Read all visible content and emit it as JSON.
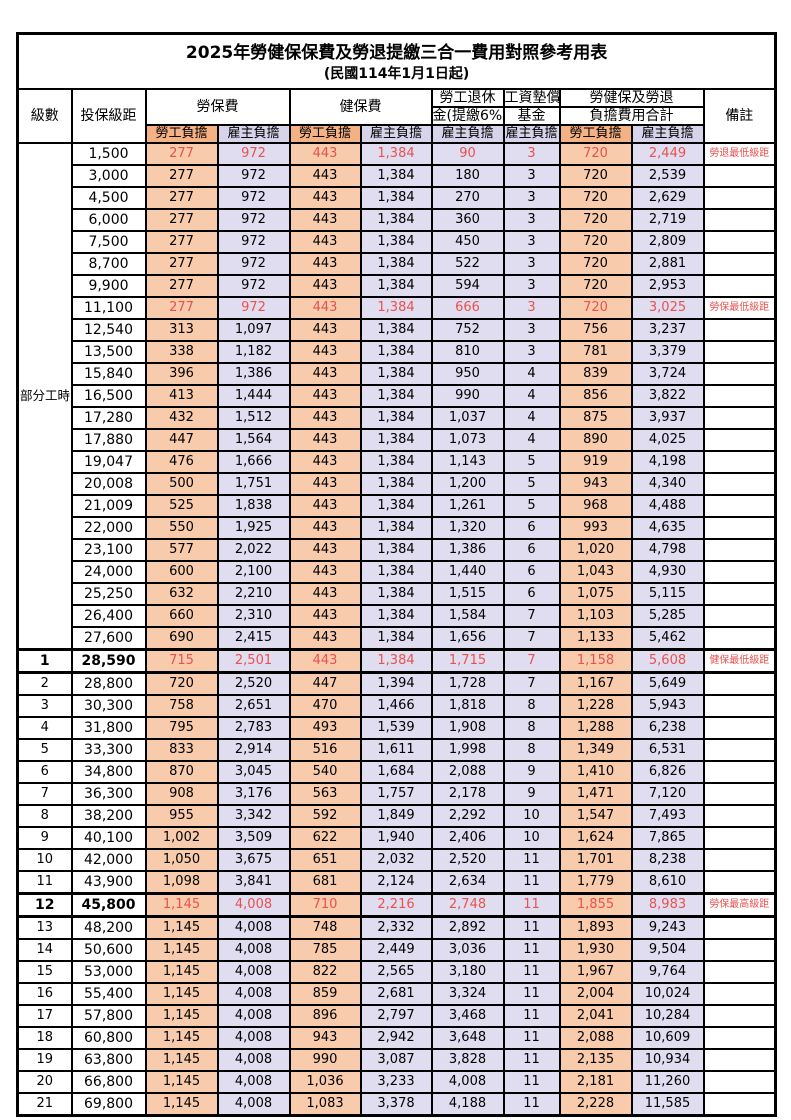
{
  "page": {
    "title": "2025年勞健保保費及勞退提繳三合一費用對照參考用表",
    "subtitle": "(民國114年1月1日起)"
  },
  "table": {
    "headers": {
      "level": "級數",
      "bracket": "投保級距",
      "labor_fee": "勞保費",
      "health_fee": "健保費",
      "pension_line1": "勞工退休",
      "pension_line2": "金(提繳6%)",
      "wage_fund_line1": "工資墊償",
      "wage_fund_line2": "基金",
      "total_line1": "勞健保及勞退",
      "total_line2": "負擔費用合計",
      "remark": "備註",
      "employee": "勞工負擔",
      "employer": "雇主負擔"
    },
    "part_time_label": "部分工時",
    "part_time_rowspan": 23,
    "column_kinds": [
      "emp",
      "er",
      "emp",
      "er",
      "er",
      "er",
      "emp",
      "er"
    ],
    "colors": {
      "employee_header": "#F4B183",
      "employer_header": "#D6D3EA",
      "employee_cell": "#F8CBAD",
      "employer_cell": "#E0DDF0",
      "highlight_text": "#E8524E",
      "border": "#000000"
    },
    "rows": [
      {
        "bracket": "1,500",
        "values": [
          "277",
          "972",
          "443",
          "1,384",
          "90",
          "3",
          "720",
          "2,449"
        ],
        "remark": "勞退最低級距",
        "special": true
      },
      {
        "bracket": "3,000",
        "values": [
          "277",
          "972",
          "443",
          "1,384",
          "180",
          "3",
          "720",
          "2,539"
        ]
      },
      {
        "bracket": "4,500",
        "values": [
          "277",
          "972",
          "443",
          "1,384",
          "270",
          "3",
          "720",
          "2,629"
        ]
      },
      {
        "bracket": "6,000",
        "values": [
          "277",
          "972",
          "443",
          "1,384",
          "360",
          "3",
          "720",
          "2,719"
        ]
      },
      {
        "bracket": "7,500",
        "values": [
          "277",
          "972",
          "443",
          "1,384",
          "450",
          "3",
          "720",
          "2,809"
        ]
      },
      {
        "bracket": "8,700",
        "values": [
          "277",
          "972",
          "443",
          "1,384",
          "522",
          "3",
          "720",
          "2,881"
        ]
      },
      {
        "bracket": "9,900",
        "values": [
          "277",
          "972",
          "443",
          "1,384",
          "594",
          "3",
          "720",
          "2,953"
        ]
      },
      {
        "bracket": "11,100",
        "values": [
          "277",
          "972",
          "443",
          "1,384",
          "666",
          "3",
          "720",
          "3,025"
        ],
        "remark": "勞保最低級距",
        "special": true
      },
      {
        "bracket": "12,540",
        "values": [
          "313",
          "1,097",
          "443",
          "1,384",
          "752",
          "3",
          "756",
          "3,237"
        ]
      },
      {
        "bracket": "13,500",
        "values": [
          "338",
          "1,182",
          "443",
          "1,384",
          "810",
          "3",
          "781",
          "3,379"
        ]
      },
      {
        "bracket": "15,840",
        "values": [
          "396",
          "1,386",
          "443",
          "1,384",
          "950",
          "4",
          "839",
          "3,724"
        ]
      },
      {
        "bracket": "16,500",
        "values": [
          "413",
          "1,444",
          "443",
          "1,384",
          "990",
          "4",
          "856",
          "3,822"
        ]
      },
      {
        "bracket": "17,280",
        "values": [
          "432",
          "1,512",
          "443",
          "1,384",
          "1,037",
          "4",
          "875",
          "3,937"
        ]
      },
      {
        "bracket": "17,880",
        "values": [
          "447",
          "1,564",
          "443",
          "1,384",
          "1,073",
          "4",
          "890",
          "4,025"
        ]
      },
      {
        "bracket": "19,047",
        "values": [
          "476",
          "1,666",
          "443",
          "1,384",
          "1,143",
          "5",
          "919",
          "4,198"
        ]
      },
      {
        "bracket": "20,008",
        "values": [
          "500",
          "1,751",
          "443",
          "1,384",
          "1,200",
          "5",
          "943",
          "4,340"
        ]
      },
      {
        "bracket": "21,009",
        "values": [
          "525",
          "1,838",
          "443",
          "1,384",
          "1,261",
          "5",
          "968",
          "4,488"
        ]
      },
      {
        "bracket": "22,000",
        "values": [
          "550",
          "1,925",
          "443",
          "1,384",
          "1,320",
          "6",
          "993",
          "4,635"
        ]
      },
      {
        "bracket": "23,100",
        "values": [
          "577",
          "2,022",
          "443",
          "1,384",
          "1,386",
          "6",
          "1,020",
          "4,798"
        ]
      },
      {
        "bracket": "24,000",
        "values": [
          "600",
          "2,100",
          "443",
          "1,384",
          "1,440",
          "6",
          "1,043",
          "4,930"
        ]
      },
      {
        "bracket": "25,250",
        "values": [
          "632",
          "2,210",
          "443",
          "1,384",
          "1,515",
          "6",
          "1,075",
          "5,115"
        ]
      },
      {
        "bracket": "26,400",
        "values": [
          "660",
          "2,310",
          "443",
          "1,384",
          "1,584",
          "7",
          "1,103",
          "5,285"
        ]
      },
      {
        "bracket": "27,600",
        "values": [
          "690",
          "2,415",
          "443",
          "1,384",
          "1,656",
          "7",
          "1,133",
          "5,462"
        ]
      },
      {
        "level": "1",
        "bracket": "28,590",
        "values": [
          "715",
          "2,501",
          "443",
          "1,384",
          "1,715",
          "7",
          "1,158",
          "5,608"
        ],
        "remark": "健保最低級距",
        "special": true,
        "thick": true
      },
      {
        "level": "2",
        "bracket": "28,800",
        "values": [
          "720",
          "2,520",
          "447",
          "1,394",
          "1,728",
          "7",
          "1,167",
          "5,649"
        ]
      },
      {
        "level": "3",
        "bracket": "30,300",
        "values": [
          "758",
          "2,651",
          "470",
          "1,466",
          "1,818",
          "8",
          "1,228",
          "5,943"
        ]
      },
      {
        "level": "4",
        "bracket": "31,800",
        "values": [
          "795",
          "2,783",
          "493",
          "1,539",
          "1,908",
          "8",
          "1,288",
          "6,238"
        ]
      },
      {
        "level": "5",
        "bracket": "33,300",
        "values": [
          "833",
          "2,914",
          "516",
          "1,611",
          "1,998",
          "8",
          "1,349",
          "6,531"
        ]
      },
      {
        "level": "6",
        "bracket": "34,800",
        "values": [
          "870",
          "3,045",
          "540",
          "1,684",
          "2,088",
          "9",
          "1,410",
          "6,826"
        ]
      },
      {
        "level": "7",
        "bracket": "36,300",
        "values": [
          "908",
          "3,176",
          "563",
          "1,757",
          "2,178",
          "9",
          "1,471",
          "7,120"
        ]
      },
      {
        "level": "8",
        "bracket": "38,200",
        "values": [
          "955",
          "3,342",
          "592",
          "1,849",
          "2,292",
          "10",
          "1,547",
          "7,493"
        ]
      },
      {
        "level": "9",
        "bracket": "40,100",
        "values": [
          "1,002",
          "3,509",
          "622",
          "1,940",
          "2,406",
          "10",
          "1,624",
          "7,865"
        ]
      },
      {
        "level": "10",
        "bracket": "42,000",
        "values": [
          "1,050",
          "3,675",
          "651",
          "2,032",
          "2,520",
          "11",
          "1,701",
          "8,238"
        ]
      },
      {
        "level": "11",
        "bracket": "43,900",
        "values": [
          "1,098",
          "3,841",
          "681",
          "2,124",
          "2,634",
          "11",
          "1,779",
          "8,610"
        ]
      },
      {
        "level": "12",
        "bracket": "45,800",
        "values": [
          "1,145",
          "4,008",
          "710",
          "2,216",
          "2,748",
          "11",
          "1,855",
          "8,983"
        ],
        "remark": "勞保最高級距",
        "special": true,
        "thick": true
      },
      {
        "level": "13",
        "bracket": "48,200",
        "values": [
          "1,145",
          "4,008",
          "748",
          "2,332",
          "2,892",
          "11",
          "1,893",
          "9,243"
        ]
      },
      {
        "level": "14",
        "bracket": "50,600",
        "values": [
          "1,145",
          "4,008",
          "785",
          "2,449",
          "3,036",
          "11",
          "1,930",
          "9,504"
        ]
      },
      {
        "level": "15",
        "bracket": "53,000",
        "values": [
          "1,145",
          "4,008",
          "822",
          "2,565",
          "3,180",
          "11",
          "1,967",
          "9,764"
        ]
      },
      {
        "level": "16",
        "bracket": "55,400",
        "values": [
          "1,145",
          "4,008",
          "859",
          "2,681",
          "3,324",
          "11",
          "2,004",
          "10,024"
        ]
      },
      {
        "level": "17",
        "bracket": "57,800",
        "values": [
          "1,145",
          "4,008",
          "896",
          "2,797",
          "3,468",
          "11",
          "2,041",
          "10,284"
        ]
      },
      {
        "level": "18",
        "bracket": "60,800",
        "values": [
          "1,145",
          "4,008",
          "943",
          "2,942",
          "3,648",
          "11",
          "2,088",
          "10,609"
        ]
      },
      {
        "level": "19",
        "bracket": "63,800",
        "values": [
          "1,145",
          "4,008",
          "990",
          "3,087",
          "3,828",
          "11",
          "2,135",
          "10,934"
        ]
      },
      {
        "level": "20",
        "bracket": "66,800",
        "values": [
          "1,145",
          "4,008",
          "1,036",
          "3,233",
          "4,008",
          "11",
          "2,181",
          "11,260"
        ]
      },
      {
        "level": "21",
        "bracket": "69,800",
        "values": [
          "1,145",
          "4,008",
          "1,083",
          "3,378",
          "4,188",
          "11",
          "2,228",
          "11,585"
        ]
      }
    ]
  }
}
